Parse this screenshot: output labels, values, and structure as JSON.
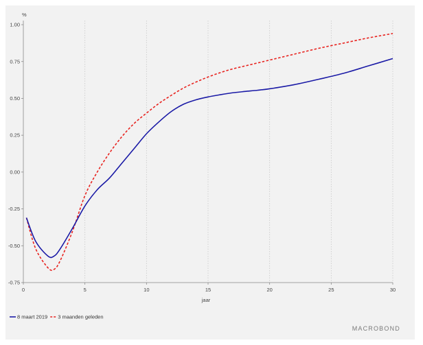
{
  "chart_data": {
    "type": "line",
    "ylabel": "%",
    "xlabel": "jaar",
    "xlim": [
      0,
      30
    ],
    "ylim": [
      -0.75,
      1.0
    ],
    "x_ticks": [
      0,
      5,
      10,
      15,
      20,
      25,
      30
    ],
    "x_tick_labels": [
      "0",
      "5",
      "10",
      "15",
      "20",
      "25",
      "30"
    ],
    "y_ticks": [
      1.0,
      0.75,
      0.5,
      0.25,
      0.0,
      -0.25,
      -0.5,
      -0.75
    ],
    "y_tick_labels": [
      "1.00",
      "0.75",
      "0.50",
      "0.25",
      "0.00",
      "-0.25",
      "-0.50",
      "-0.75"
    ],
    "grid": "vertical-dotted",
    "legend_position": "bottom-left",
    "series": [
      {
        "name": "8 maart 2019",
        "color": "#1a1aa6",
        "style": "solid",
        "x": [
          0.25,
          1,
          2,
          2.5,
          3,
          4,
          5,
          6,
          7,
          8,
          9,
          10,
          11,
          12,
          13,
          14,
          15,
          16,
          17,
          18,
          19,
          20,
          22,
          24,
          26,
          28,
          30
        ],
        "y": [
          -0.31,
          -0.47,
          -0.57,
          -0.57,
          -0.52,
          -0.38,
          -0.23,
          -0.12,
          -0.04,
          0.06,
          0.16,
          0.26,
          0.34,
          0.41,
          0.46,
          0.49,
          0.51,
          0.525,
          0.538,
          0.547,
          0.555,
          0.565,
          0.593,
          0.63,
          0.67,
          0.72,
          0.77
        ]
      },
      {
        "name": "3 maanden geleden",
        "color": "#e8231f",
        "style": "dashed",
        "x": [
          0.25,
          1,
          2,
          2.5,
          3,
          4,
          5,
          6,
          7,
          8,
          9,
          10,
          11,
          12,
          13,
          14,
          15,
          16,
          17,
          18,
          19,
          20,
          22,
          24,
          26,
          28,
          30
        ],
        "y": [
          -0.31,
          -0.52,
          -0.65,
          -0.66,
          -0.6,
          -0.4,
          -0.16,
          0.0,
          0.13,
          0.24,
          0.33,
          0.4,
          0.465,
          0.52,
          0.57,
          0.61,
          0.645,
          0.675,
          0.7,
          0.72,
          0.74,
          0.76,
          0.8,
          0.84,
          0.875,
          0.91,
          0.94
        ]
      }
    ]
  },
  "logo_text": "MACROBOND"
}
